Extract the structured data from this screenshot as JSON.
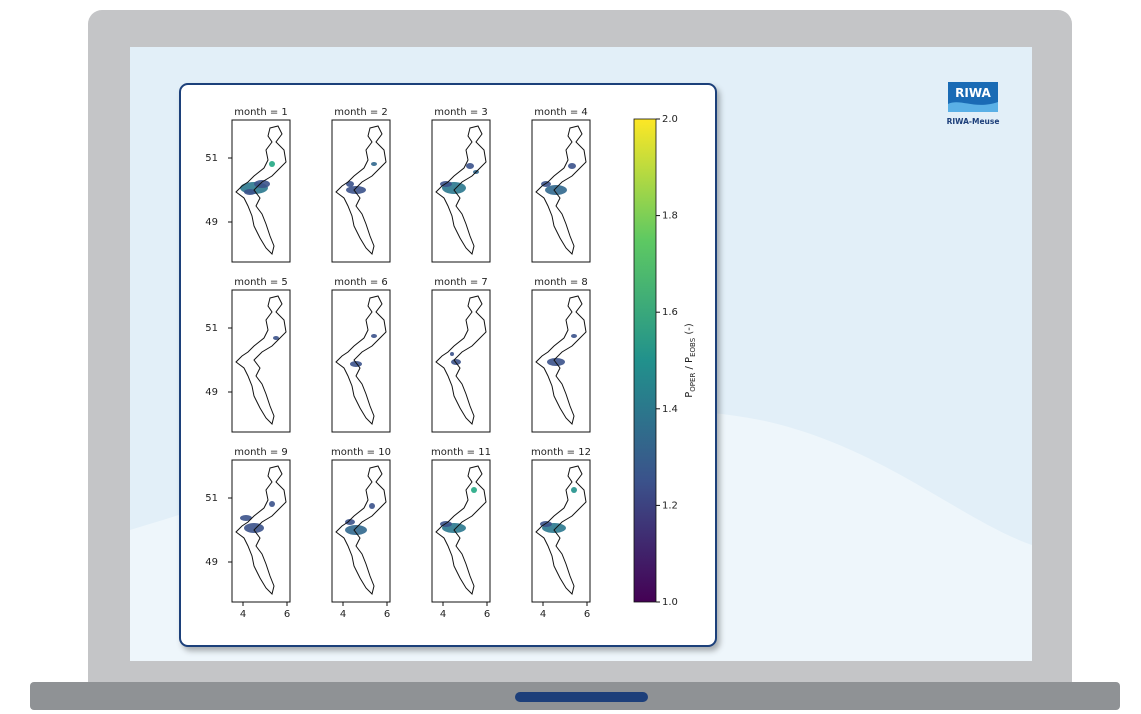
{
  "figure": {
    "panels": [
      {
        "title": "month = 1"
      },
      {
        "title": "month = 2"
      },
      {
        "title": "month = 3"
      },
      {
        "title": "month = 4"
      },
      {
        "title": "month = 5"
      },
      {
        "title": "month = 6"
      },
      {
        "title": "month = 7"
      },
      {
        "title": "month = 8"
      },
      {
        "title": "month = 9"
      },
      {
        "title": "month = 10"
      },
      {
        "title": "month = 11"
      },
      {
        "title": "month = 12"
      }
    ],
    "yticks": [
      51,
      49
    ],
    "xticks": [
      4,
      6
    ],
    "colorbar": {
      "label": {
        "main": "P",
        "sub1": "OPER",
        "mid": " / P",
        "sub2": "EOBS",
        "suffix": " (-)"
      },
      "lim": [
        1,
        2
      ],
      "ticks": [
        {
          "value": 1,
          "label": "1.0"
        },
        {
          "value": 1.2,
          "label": "1.2"
        },
        {
          "value": 1.4,
          "label": "1.4"
        },
        {
          "value": 1.6,
          "label": "1.6"
        },
        {
          "value": 1.8,
          "label": "1.8"
        },
        {
          "value": 2,
          "label": "2.0"
        }
      ]
    }
  },
  "logo": {
    "title": "RIWA",
    "subtitle": "RIWA-Meuse"
  }
}
